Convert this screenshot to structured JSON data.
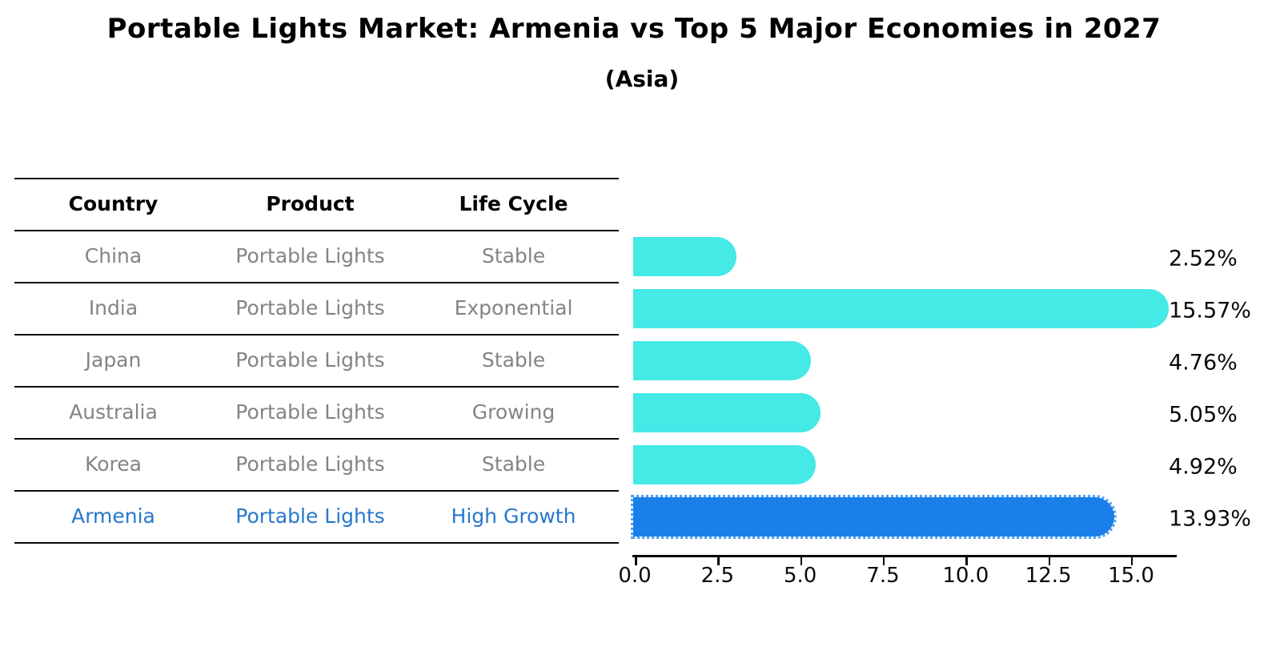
{
  "title": "Portable Lights Market: Armenia vs Top 5 Major Economies in 2027",
  "subtitle": "(Asia)",
  "table": {
    "headers": [
      "Country",
      "Product",
      "Life Cycle"
    ],
    "rows": [
      {
        "country": "China",
        "product": "Portable Lights",
        "life_cycle": "Stable",
        "highlight": false
      },
      {
        "country": "India",
        "product": "Portable Lights",
        "life_cycle": "Exponential",
        "highlight": false
      },
      {
        "country": "Japan",
        "product": "Portable Lights",
        "life_cycle": "Stable",
        "highlight": false
      },
      {
        "country": "Australia",
        "product": "Portable Lights",
        "life_cycle": "Growing",
        "highlight": false
      },
      {
        "country": "Korea",
        "product": "Portable Lights",
        "life_cycle": "Stable",
        "highlight": false
      },
      {
        "country": "Armenia",
        "product": "Portable Lights",
        "life_cycle": "High Growth",
        "highlight": true
      }
    ]
  },
  "chart_data": {
    "type": "bar",
    "orientation": "horizontal",
    "title": "Portable Lights Market: Armenia vs Top 5 Major Economies in 2027 (Asia)",
    "categories": [
      "China",
      "India",
      "Japan",
      "Australia",
      "Korea",
      "Armenia"
    ],
    "values": [
      2.52,
      15.57,
      4.76,
      5.05,
      4.92,
      13.93
    ],
    "value_labels": [
      "2.52%",
      "15.57%",
      "4.76%",
      "5.05%",
      "4.92%",
      "13.93%"
    ],
    "x_tick_labels": [
      "0.0",
      "2.5",
      "5.0",
      "7.5",
      "10.0",
      "12.5",
      "15.0"
    ],
    "x_tick_values": [
      0,
      2.5,
      5,
      7.5,
      10,
      12.5,
      15
    ],
    "xlim": [
      0,
      16.4
    ],
    "grid": false,
    "legend": "none",
    "bar_color": "#45e9e6",
    "highlight_bar_color": "#1b7fe9",
    "highlight_index": 5,
    "highlight_text_color": "#2878cd",
    "row_text_color": "#848484"
  }
}
